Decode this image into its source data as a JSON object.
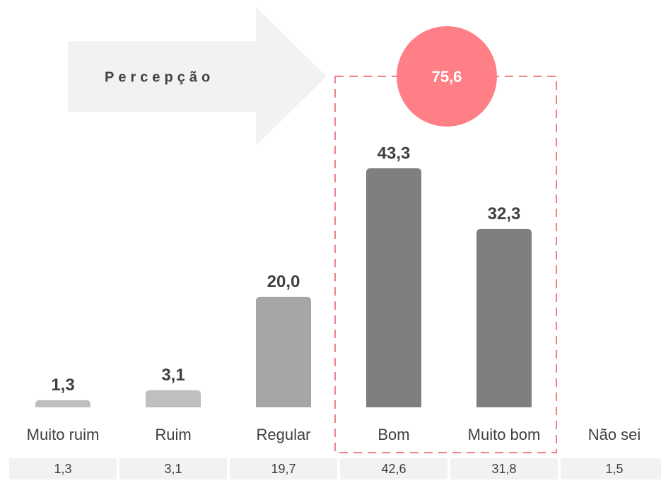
{
  "chart_data": {
    "type": "bar",
    "banner": "Percepção",
    "annotation": "75,6",
    "categories": [
      "Muito ruim",
      "Ruim",
      "Regular",
      "Bom",
      "Muito bom",
      "Não sei"
    ],
    "values": [
      1.3,
      3.1,
      20.0,
      43.3,
      32.3,
      null
    ],
    "value_labels": [
      "1,3",
      "3,1",
      "20,0",
      "43,3",
      "32,3",
      null
    ],
    "colors": [
      "#bfbfbf",
      "#bfbfbf",
      "#a6a6a6",
      "#7f7f7f",
      "#7f7f7f",
      "#7f7f7f"
    ],
    "summary_row": [
      "1,3",
      "3,1",
      "19,7",
      "42,6",
      "31,8",
      "1,5"
    ]
  }
}
